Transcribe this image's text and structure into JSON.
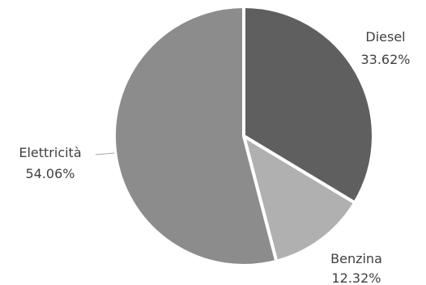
{
  "chart_data": {
    "type": "pie",
    "slices": [
      {
        "label": "Diesel",
        "value": 33.62,
        "display": "33.62%",
        "color": "#5f5f5f"
      },
      {
        "label": "Benzina",
        "value": 12.32,
        "display": "12.32%",
        "color": "#b0b0b0"
      },
      {
        "label": "Elettricità",
        "value": 54.06,
        "display": "54.06%",
        "color": "#8c8c8c"
      }
    ],
    "start": "12 o'clock",
    "direction": "clockwise",
    "slice_border_color": "#ffffff",
    "label_text_color": "#404040",
    "leader_line_color": "#a6a6a6"
  }
}
